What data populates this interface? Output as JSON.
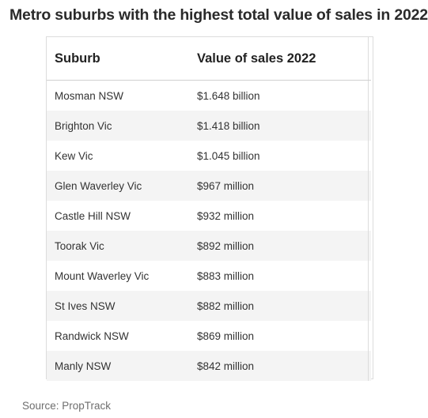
{
  "title": "Metro suburbs with the highest total value of sales in 2022",
  "source": "Source: PropTrack",
  "chart_data": {
    "type": "table",
    "title": "Metro suburbs with the highest total value of sales in 2022",
    "columns": [
      "Suburb",
      "Value of sales 2022"
    ],
    "rows": [
      [
        "Mosman NSW",
        "$1.648 billion"
      ],
      [
        "Brighton Vic",
        "$1.418 billion"
      ],
      [
        "Kew Vic",
        "$1.045 billion"
      ],
      [
        "Glen Waverley Vic",
        "$967 million"
      ],
      [
        "Castle Hill NSW",
        "$932 million"
      ],
      [
        "Toorak Vic",
        "$892 million"
      ],
      [
        "Mount Waverley Vic",
        "$883 million"
      ],
      [
        "St Ives NSW",
        "$882 million"
      ],
      [
        "Randwick NSW",
        "$869 million"
      ],
      [
        "Manly NSW",
        "$842 million"
      ]
    ]
  }
}
